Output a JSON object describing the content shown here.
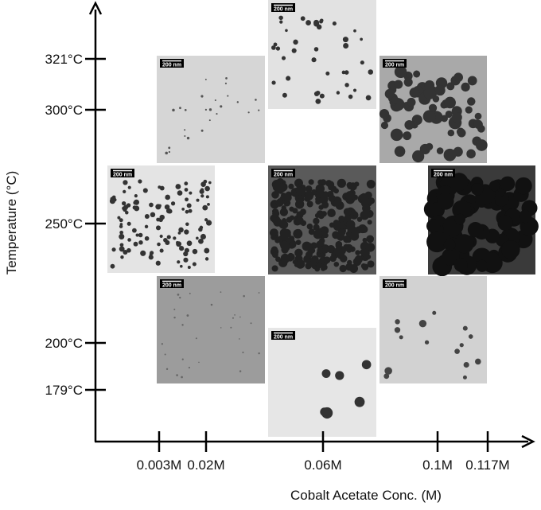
{
  "x_axis": {
    "label": "Cobalt Acetate Conc. (M)",
    "ticks": [
      "0.003M",
      "0.02M",
      "0.06M",
      "0.1M",
      "0.117M"
    ]
  },
  "y_axis": {
    "label": "Temperature (°C)",
    "ticks": [
      "321°C",
      "300°C",
      "250°C",
      "200°C",
      "179°C"
    ]
  },
  "panels": [
    {
      "scale_bar": "200 nm"
    },
    {
      "scale_bar": "200 nm"
    },
    {
      "scale_bar": "200 nm"
    },
    {
      "scale_bar": "200 nm"
    },
    {
      "scale_bar": "200 nm"
    },
    {
      "scale_bar": "200 nm"
    },
    {
      "scale_bar": "200 nm"
    },
    {
      "scale_bar": "200 nm"
    },
    {
      "scale_bar": "200 nm"
    }
  ]
}
